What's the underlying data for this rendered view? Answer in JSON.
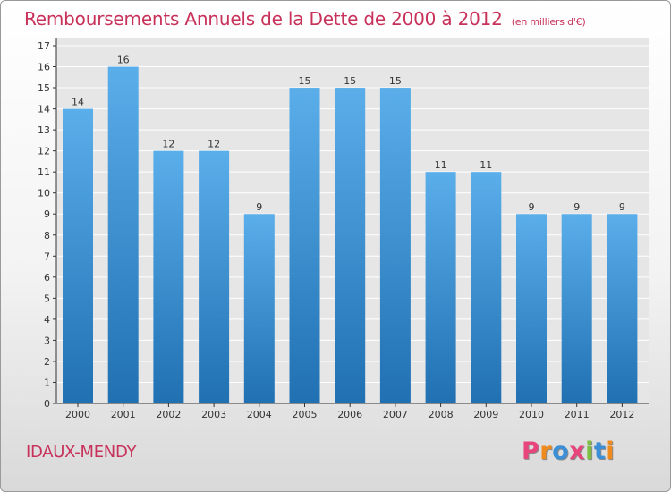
{
  "header": {
    "title": "Remboursements Annuels de la Dette de 2000 à 2012",
    "unit": "(en milliers d'€)"
  },
  "footer": {
    "commune": "IDAUX-MENDY",
    "logo_text": "Proxiti",
    "logo_colors": [
      "#e8457c",
      "#f08a1c",
      "#3b8fd6",
      "#e8457c",
      "#7fbf3f",
      "#3b8fd6",
      "#f08a1c"
    ]
  },
  "colors": {
    "title": "#c8325a",
    "bar_top": "#5aaeea",
    "bar_bottom": "#2070b2",
    "axis": "#333333",
    "grid": "#ffffff"
  },
  "chart_data": {
    "type": "bar",
    "categories": [
      "2000",
      "2001",
      "2002",
      "2003",
      "2004",
      "2005",
      "2006",
      "2007",
      "2008",
      "2009",
      "2010",
      "2011",
      "2012"
    ],
    "values": [
      14,
      16,
      12,
      12,
      9,
      15,
      15,
      15,
      11,
      11,
      9,
      9,
      9
    ],
    "yticks": [
      0,
      1,
      2,
      3,
      4,
      5,
      6,
      7,
      8,
      9,
      10,
      11,
      12,
      13,
      14,
      15,
      16,
      17
    ],
    "ylim": [
      0,
      17
    ],
    "xlabel": "",
    "ylabel": "",
    "grid": true
  }
}
